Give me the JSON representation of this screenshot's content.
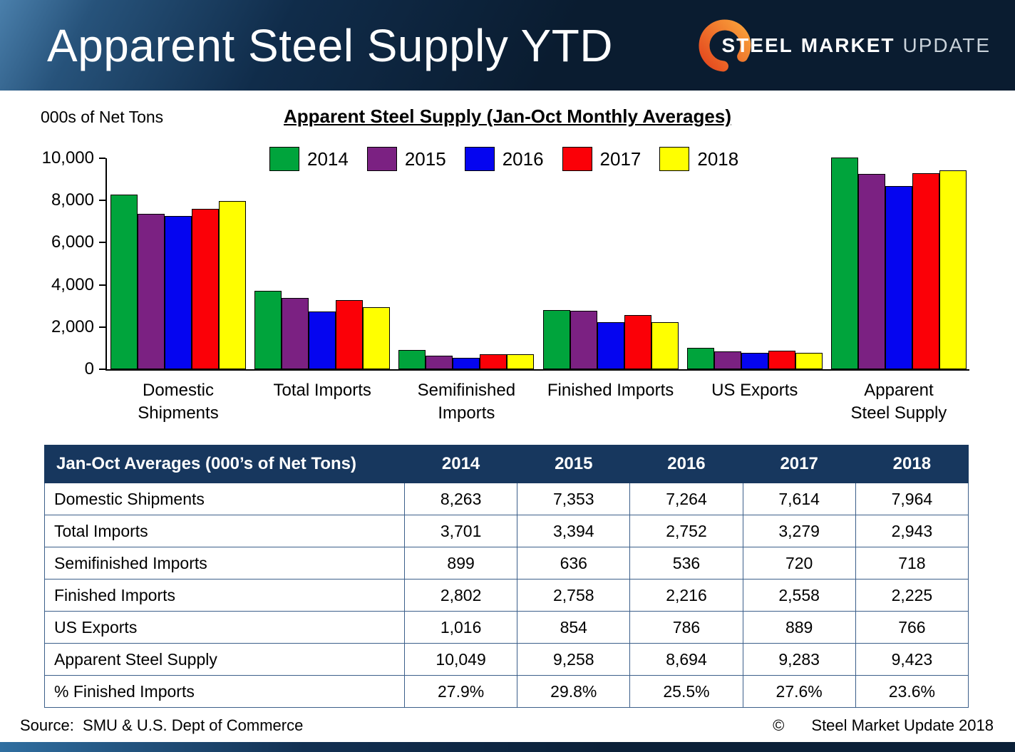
{
  "header": {
    "title": "Apparent Steel Supply YTD",
    "logo": {
      "steel": "STEEL",
      "market": "MARKET",
      "update": "UPDATE"
    }
  },
  "chart_data": {
    "type": "bar",
    "title": "Apparent Steel Supply (Jan-Oct Monthly Averages)",
    "ylabel": "000s of Net Tons",
    "ylim": [
      0,
      10000
    ],
    "y_ticks": [
      0,
      2000,
      4000,
      6000,
      8000,
      10000
    ],
    "grid": false,
    "legend_position": "top",
    "categories": [
      "Domestic Shipments",
      "Total Imports",
      "Semifinished Imports",
      "Finished Imports",
      "US Exports",
      "Apparent Steel Supply"
    ],
    "category_labels": [
      "Domestic\nShipments",
      "Total Imports",
      "Semifinished\nImports",
      "Finished Imports",
      "US Exports",
      "Apparent\nSteel Supply"
    ],
    "series": [
      {
        "name": "2014",
        "color": "#00A43C",
        "values": [
          8263,
          3701,
          899,
          2802,
          1016,
          10049
        ]
      },
      {
        "name": "2015",
        "color": "#7B2182",
        "values": [
          7353,
          3394,
          636,
          2758,
          854,
          9258
        ]
      },
      {
        "name": "2016",
        "color": "#0505F0",
        "values": [
          7264,
          2752,
          536,
          2216,
          786,
          8694
        ]
      },
      {
        "name": "2017",
        "color": "#FB0007",
        "values": [
          7614,
          3279,
          720,
          2558,
          889,
          9283
        ]
      },
      {
        "name": "2018",
        "color": "#FFFF00",
        "values": [
          7964,
          2943,
          718,
          2225,
          766,
          9423
        ]
      }
    ]
  },
  "table": {
    "headers": [
      "Jan-Oct Averages (000’s of Net Tons)",
      "2014",
      "2015",
      "2016",
      "2017",
      "2018"
    ],
    "rows": [
      {
        "label": "Domestic Shipments",
        "values": [
          "8,263",
          "7,353",
          "7,264",
          "7,614",
          "7,964"
        ]
      },
      {
        "label": "Total Imports",
        "values": [
          "3,701",
          "3,394",
          "2,752",
          "3,279",
          "2,943"
        ]
      },
      {
        "label": "Semifinished Imports",
        "values": [
          "899",
          "636",
          "536",
          "720",
          "718"
        ]
      },
      {
        "label": "Finished Imports",
        "values": [
          "2,802",
          "2,758",
          "2,216",
          "2,558",
          "2,225"
        ]
      },
      {
        "label": "US Exports",
        "values": [
          "1,016",
          "854",
          "786",
          "889",
          "766"
        ]
      },
      {
        "label": "Apparent Steel Supply",
        "values": [
          "10,049",
          "9,258",
          "8,694",
          "9,283",
          "9,423"
        ]
      },
      {
        "label": "% Finished Imports",
        "values": [
          "27.9%",
          "29.8%",
          "25.5%",
          "27.6%",
          "23.6%"
        ]
      }
    ]
  },
  "footer": {
    "source": "Source:  SMU & U.S. Dept of Commerce",
    "copyright_symbol": "©",
    "copyright_text": "Steel Market Update 2018"
  }
}
